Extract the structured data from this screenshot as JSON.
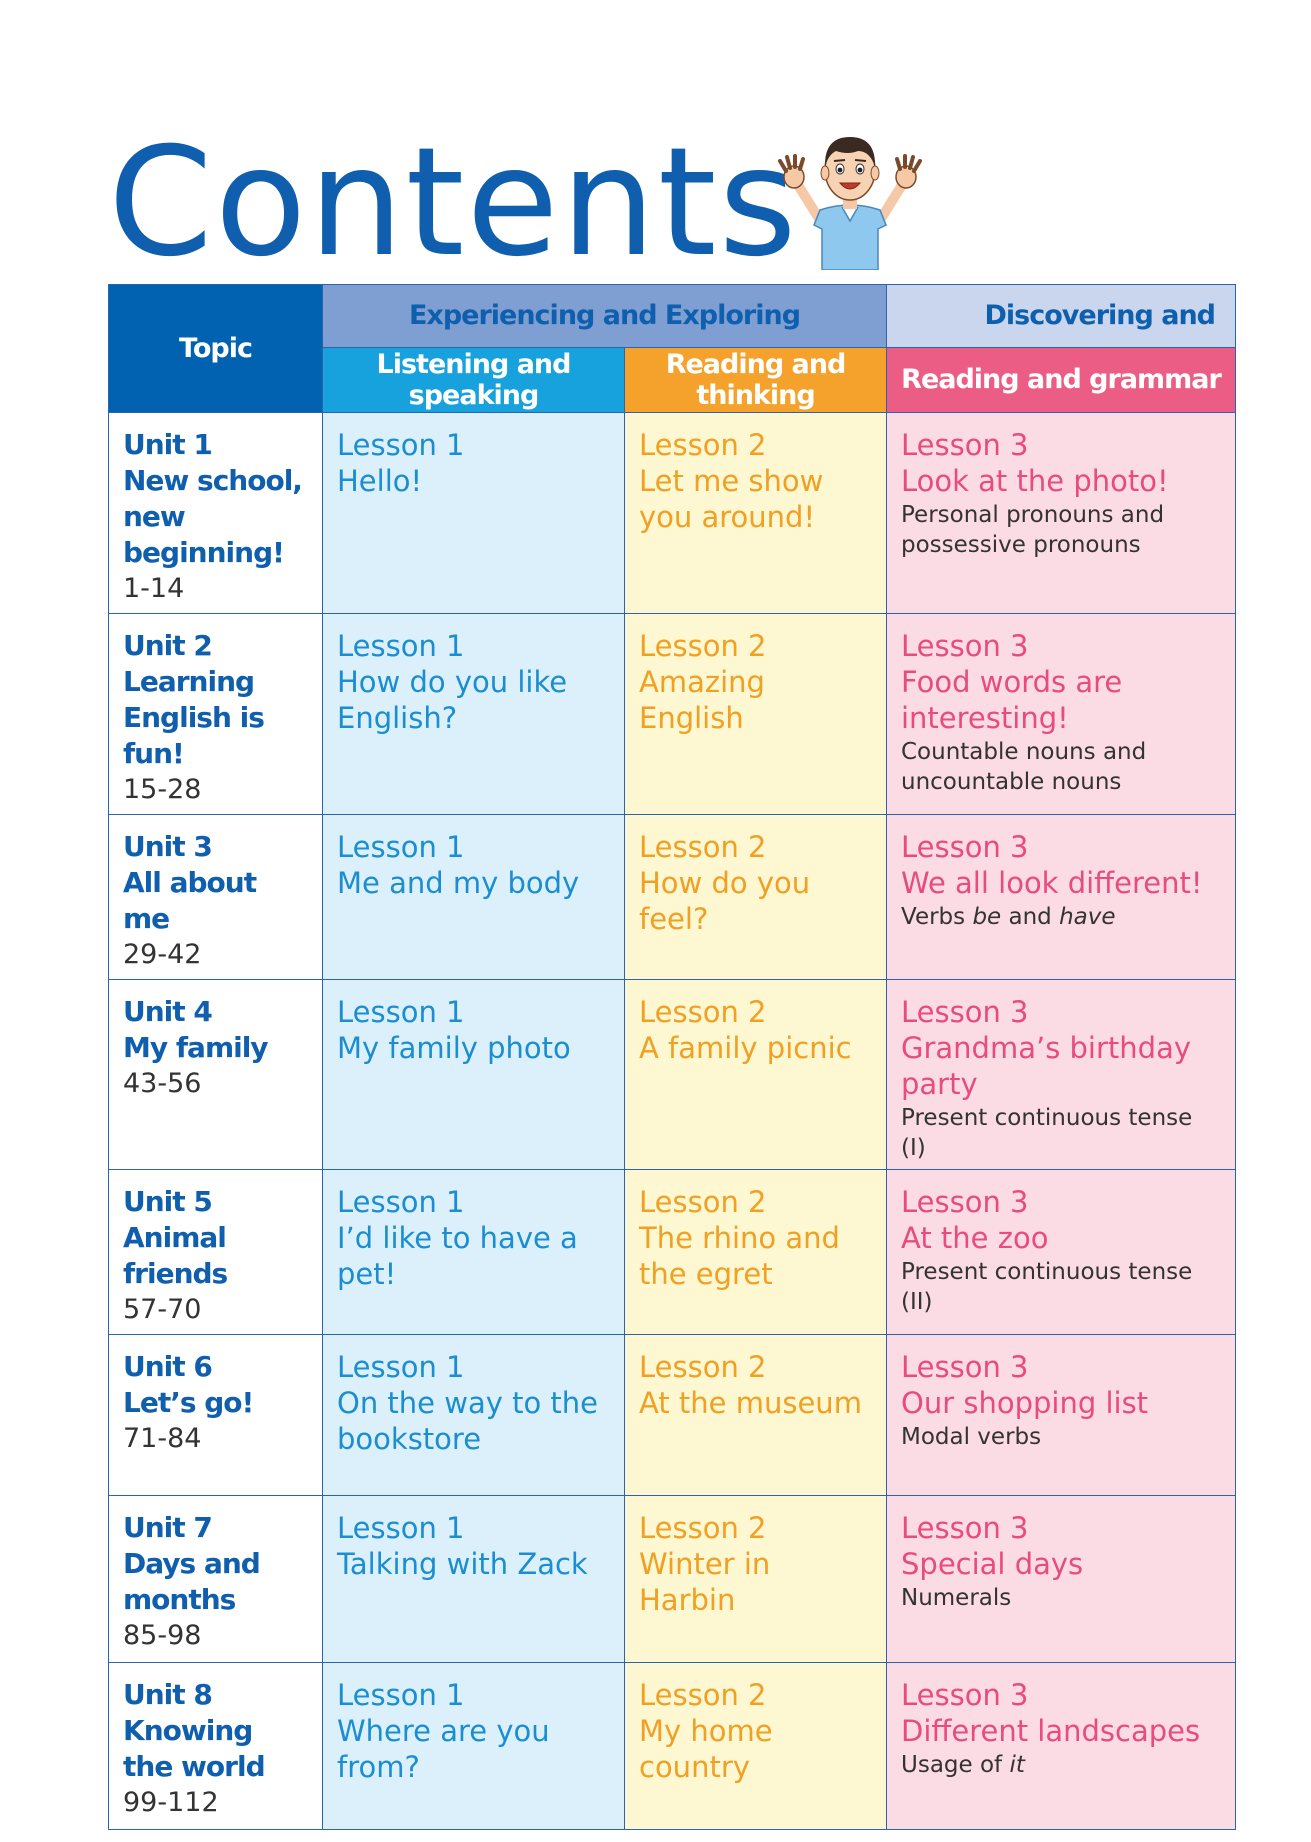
{
  "title": "Contents",
  "colors": {
    "title": "#0f5fae",
    "topic_header": "#0062b1",
    "experiencing_header": "#7f9fd2",
    "discovering_header": "#c9d6ee",
    "listening_header": "#17a1dd",
    "reading_header": "#f5a22c",
    "grammar_header": "#ec5d86",
    "listening_cell": "#dcf0fb",
    "reading_cell": "#fdf7d2",
    "grammar_cell": "#fbdce4"
  },
  "header": {
    "topic": "Topic",
    "group1": "Experiencing and Exploring",
    "group2": "Discovering and",
    "col_listening": "Listening and speaking",
    "col_reading": "Reading and thinking",
    "col_grammar": "Reading and grammar"
  },
  "units": [
    {
      "unit": "Unit 1",
      "name": "New school, new beginning!",
      "pages": "1-14",
      "l1": {
        "label": "Lesson 1",
        "title": "Hello!"
      },
      "l2": {
        "label": "Lesson 2",
        "title": "Let me show you around!"
      },
      "l3": {
        "label": "Lesson 3",
        "title": "Look at the photo!",
        "grammar": "Personal pronouns and possessive pronouns"
      }
    },
    {
      "unit": "Unit 2",
      "name": "Learning English is fun!",
      "pages": "15-28",
      "l1": {
        "label": "Lesson 1",
        "title": "How do you like English?"
      },
      "l2": {
        "label": "Lesson 2",
        "title": "Amazing English"
      },
      "l3": {
        "label": "Lesson 3",
        "title": "Food words are interesting!",
        "grammar": "Countable nouns and uncountable nouns"
      }
    },
    {
      "unit": "Unit 3",
      "name": "All about me",
      "pages": "29-42",
      "l1": {
        "label": "Lesson 1",
        "title": "Me and my body"
      },
      "l2": {
        "label": "Lesson 2",
        "title": "How do you feel?"
      },
      "l3": {
        "label": "Lesson 3",
        "title": "We all look different!",
        "grammar_parts": [
          "Verbs ",
          "be",
          " and ",
          "have"
        ]
      }
    },
    {
      "unit": "Unit 4",
      "name": "My family",
      "pages": "43-56",
      "l1": {
        "label": "Lesson 1",
        "title": "My family photo"
      },
      "l2": {
        "label": "Lesson 2",
        "title": "A family picnic"
      },
      "l3": {
        "label": "Lesson 3",
        "title": "Grandma’s birthday party",
        "grammar": "Present continuous tense (I)"
      }
    },
    {
      "unit": "Unit 5",
      "name": "Animal friends",
      "pages": "57-70",
      "l1": {
        "label": "Lesson 1",
        "title": "I’d like to have a pet!"
      },
      "l2": {
        "label": "Lesson 2",
        "title": "The rhino and the egret"
      },
      "l3": {
        "label": "Lesson 3",
        "title": "At the zoo",
        "grammar": "Present continuous tense (II)"
      }
    },
    {
      "unit": "Unit 6",
      "name": "Let’s go!",
      "pages": "71-84",
      "l1": {
        "label": "Lesson 1",
        "title": "On the way to the bookstore"
      },
      "l2": {
        "label": "Lesson 2",
        "title": "At the museum"
      },
      "l3": {
        "label": "Lesson 3",
        "title": "Our shopping list",
        "grammar": "Modal verbs"
      }
    },
    {
      "unit": "Unit 7",
      "name": "Days and months",
      "pages": "85-98",
      "l1": {
        "label": "Lesson 1",
        "title": "Talking with Zack"
      },
      "l2": {
        "label": "Lesson 2",
        "title": "Winter in Harbin"
      },
      "l3": {
        "label": "Lesson 3",
        "title": "Special days",
        "grammar": "Numerals"
      }
    },
    {
      "unit": "Unit 8",
      "name": "Knowing the world",
      "pages": "99-112",
      "l1": {
        "label": "Lesson 1",
        "title": "Where are you from?"
      },
      "l2": {
        "label": "Lesson 2",
        "title": "My home country"
      },
      "l3": {
        "label": "Lesson 3",
        "title": "Different landscapes",
        "grammar_parts": [
          "Usage of ",
          "it"
        ]
      }
    }
  ]
}
